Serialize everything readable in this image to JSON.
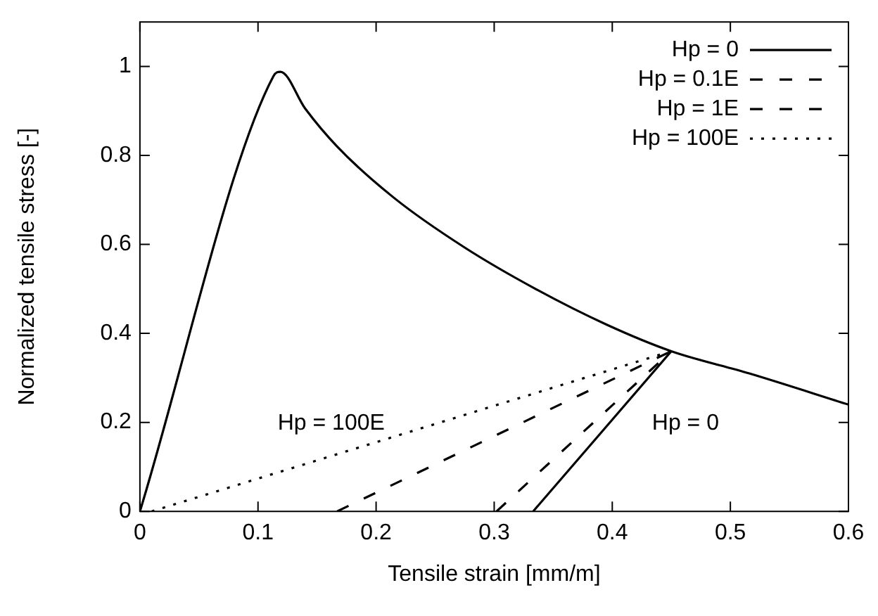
{
  "chart_data": {
    "type": "line",
    "xlabel": "Tensile strain [mm/m]",
    "ylabel": "Normalized tensile stress [-]",
    "xlim": [
      0,
      0.6
    ],
    "ylim": [
      0,
      1.1
    ],
    "xticks": [
      0,
      0.1,
      0.2,
      0.3,
      0.4,
      0.5,
      0.6
    ],
    "yticks": [
      0,
      0.2,
      0.4,
      0.6,
      0.8,
      1
    ],
    "grid": false,
    "legend": "top right",
    "marker": "none",
    "series": [
      {
        "name": "Hp = 0",
        "color": "#000000",
        "line_style": "solid",
        "x": [
          0,
          0.113,
          0.119,
          0.14,
          0.167,
          0.215,
          0.275,
          0.335,
          0.395,
          0.45,
          0.516,
          0.6
        ],
        "values": [
          0,
          0.978,
          0.988,
          0.905,
          0.82,
          0.705,
          0.593,
          0.5,
          0.42,
          0.36,
          0.31,
          0.24
        ]
      },
      {
        "color": "#000000",
        "line_style": "solid",
        "x": [
          0.333,
          0.45
        ],
        "values": [
          0,
          0.36
        ]
      },
      {
        "name": "Hp = 0.1E",
        "color": "#000000",
        "line_style": "dashed",
        "x": [
          0.302,
          0.45
        ],
        "values": [
          0,
          0.36
        ]
      },
      {
        "name": "Hp = 1E",
        "color": "#000000",
        "line_style": "dashed",
        "x": [
          0.167,
          0.45
        ],
        "values": [
          0,
          0.36
        ]
      },
      {
        "name": "Hp = 100E",
        "color": "#000000",
        "line_style": "dotted",
        "x": [
          0.01,
          0.45
        ],
        "values": [
          0,
          0.36
        ]
      }
    ],
    "annotations": [
      "Hp = 100E",
      "Hp = 0"
    ]
  }
}
